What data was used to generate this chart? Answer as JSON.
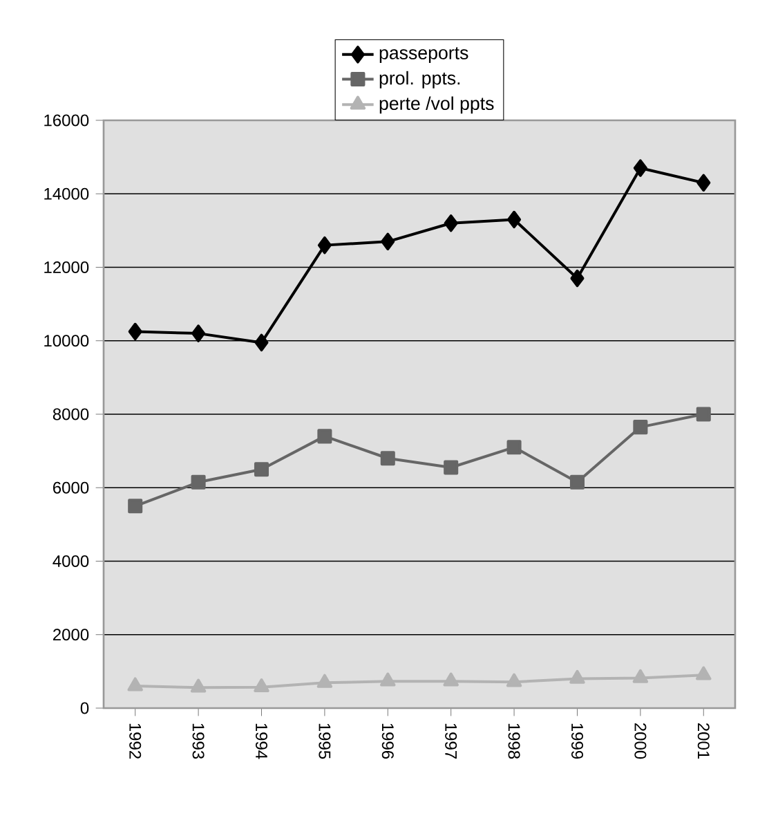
{
  "chart_data": {
    "type": "line",
    "categories": [
      "1992",
      "1993",
      "1994",
      "1995",
      "1996",
      "1997",
      "1998",
      "1999",
      "2000",
      "2001"
    ],
    "series": [
      {
        "name": "passeports",
        "color": "#000000",
        "marker": "diamond",
        "values": [
          10250,
          10200,
          9950,
          12600,
          12700,
          13200,
          13300,
          11700,
          14700,
          14300
        ]
      },
      {
        "name": "prol. ppts.",
        "color": "#666666",
        "marker": "square",
        "values": [
          5500,
          6150,
          6500,
          7400,
          6800,
          6550,
          7100,
          6150,
          7650,
          8000
        ]
      },
      {
        "name": "perte /vol ppts",
        "color": "#b3b3b3",
        "marker": "triangle",
        "values": [
          600,
          560,
          570,
          690,
          730,
          730,
          710,
          800,
          820,
          900
        ]
      }
    ],
    "ylim": [
      0,
      16000
    ],
    "yticks": [
      0,
      2000,
      4000,
      6000,
      8000,
      10000,
      12000,
      14000,
      16000
    ],
    "grid": "y",
    "legend": "top",
    "line_style": "solid"
  }
}
